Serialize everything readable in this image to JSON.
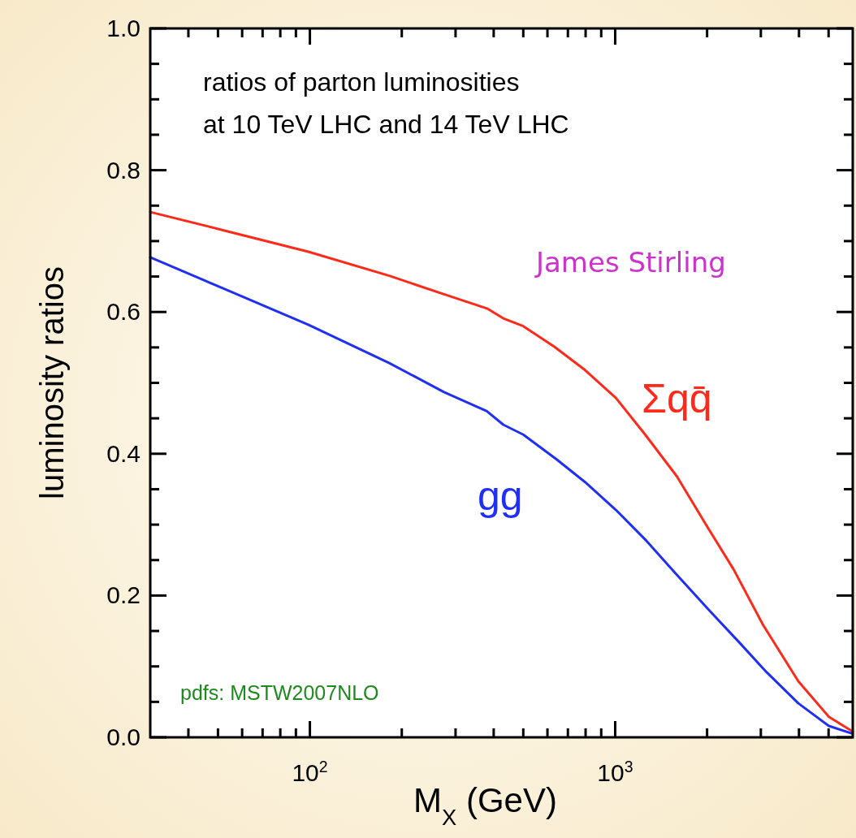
{
  "chart_data": {
    "type": "line",
    "title": "ratios of parton luminosities\nat 10 TeV LHC and 14 TeV LHC",
    "xlabel": "M$_{X}$ (GeV)",
    "ylabel": "luminosity ratios",
    "log": "x",
    "xlim": [
      30,
      6000
    ],
    "ylim": [
      0,
      1
    ],
    "xticks": [
      {
        "value": 40,
        "label": null
      },
      {
        "value": 50,
        "label": null
      },
      {
        "value": 60,
        "label": null
      },
      {
        "value": 70,
        "label": null
      },
      {
        "value": 80,
        "label": null
      },
      {
        "value": 90,
        "label": null
      },
      {
        "value": 100,
        "label": "10$^{2}$"
      },
      {
        "value": 200,
        "label": null
      },
      {
        "value": 300,
        "label": null
      },
      {
        "value": 400,
        "label": null
      },
      {
        "value": 500,
        "label": null
      },
      {
        "value": 600,
        "label": null
      },
      {
        "value": 700,
        "label": null
      },
      {
        "value": 800,
        "label": null
      },
      {
        "value": 900,
        "label": null
      },
      {
        "value": 1000,
        "label": "10$^{3}$"
      },
      {
        "value": 2000,
        "label": null
      },
      {
        "value": 3000,
        "label": null
      },
      {
        "value": 4000,
        "label": null
      },
      {
        "value": 5000,
        "label": null
      }
    ],
    "yticks": [
      {
        "value": 0,
        "label": "0.0"
      },
      {
        "value": 0.05,
        "label": null
      },
      {
        "value": 0.1,
        "label": null
      },
      {
        "value": 0.15,
        "label": null
      },
      {
        "value": 0.2,
        "label": "0.2"
      },
      {
        "value": 0.25,
        "label": null
      },
      {
        "value": 0.3,
        "label": null
      },
      {
        "value": 0.35,
        "label": null
      },
      {
        "value": 0.4,
        "label": "0.4"
      },
      {
        "value": 0.45,
        "label": null
      },
      {
        "value": 0.5,
        "label": null
      },
      {
        "value": 0.55,
        "label": null
      },
      {
        "value": 0.6,
        "label": "0.6"
      },
      {
        "value": 0.65,
        "label": null
      },
      {
        "value": 0.7,
        "label": null
      },
      {
        "value": 0.75,
        "label": null
      },
      {
        "value": 0.8,
        "label": "0.8"
      },
      {
        "value": 0.85,
        "label": null
      },
      {
        "value": 0.9,
        "label": null
      },
      {
        "value": 0.95,
        "label": null
      },
      {
        "value": 1,
        "label": "1.0"
      }
    ],
    "marker": "none",
    "line_style": "solid",
    "series": [
      {
        "name": "Σqq̄",
        "color": "#ff2a1a",
        "x": [
          30,
          53.5,
          98.8,
          182,
          275,
          380,
          430,
          500,
          632,
          797,
          1004,
          1254,
          1593,
          2003,
          2442,
          3055,
          3980,
          5010,
          6000
        ],
        "values": [
          0.741,
          0.714,
          0.685,
          0.651,
          0.625,
          0.605,
          0.591,
          0.58,
          0.551,
          0.518,
          0.479,
          0.427,
          0.368,
          0.297,
          0.237,
          0.158,
          0.079,
          0.029,
          0.008
        ]
      },
      {
        "name": "gg",
        "color": "#1f2ff5",
        "x": [
          30,
          53.5,
          98.8,
          182,
          275,
          380,
          430,
          500,
          643,
          797,
          1004,
          1267,
          1593,
          2003,
          2535,
          3130,
          3980,
          5010,
          6000
        ],
        "values": [
          0.677,
          0.631,
          0.582,
          0.528,
          0.487,
          0.46,
          0.441,
          0.427,
          0.392,
          0.36,
          0.321,
          0.277,
          0.229,
          0.182,
          0.135,
          0.092,
          0.048,
          0.016,
          0.005
        ]
      }
    ],
    "annotations": [
      "James Stirling",
      "pdfs: MSTW2007NLO"
    ]
  }
}
